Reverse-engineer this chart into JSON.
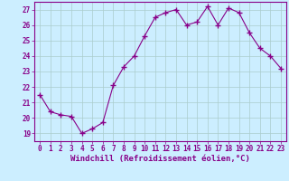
{
  "x": [
    0,
    1,
    2,
    3,
    4,
    5,
    6,
    7,
    8,
    9,
    10,
    11,
    12,
    13,
    14,
    15,
    16,
    17,
    18,
    19,
    20,
    21,
    22,
    23
  ],
  "y": [
    21.5,
    20.4,
    20.2,
    20.1,
    19.0,
    19.3,
    19.7,
    22.1,
    23.3,
    24.0,
    25.3,
    26.5,
    26.8,
    27.0,
    26.0,
    26.2,
    27.2,
    26.0,
    27.1,
    26.8,
    25.5,
    24.5,
    24.0,
    23.2
  ],
  "line_color": "#880088",
  "marker": "+",
  "marker_size": 4,
  "marker_linewidth": 1.0,
  "xlabel": "Windchill (Refroidissement éolien,°C)",
  "bg_color": "#cceeff",
  "grid_color": "#aacccc",
  "ylim": [
    18.5,
    27.5
  ],
  "xlim": [
    -0.5,
    23.5
  ],
  "yticks": [
    19,
    20,
    21,
    22,
    23,
    24,
    25,
    26,
    27
  ],
  "xticks": [
    0,
    1,
    2,
    3,
    4,
    5,
    6,
    7,
    8,
    9,
    10,
    11,
    12,
    13,
    14,
    15,
    16,
    17,
    18,
    19,
    20,
    21,
    22,
    23
  ],
  "tick_color": "#880088",
  "tick_fontsize": 5.5,
  "label_fontsize": 6.5,
  "line_width": 0.8
}
